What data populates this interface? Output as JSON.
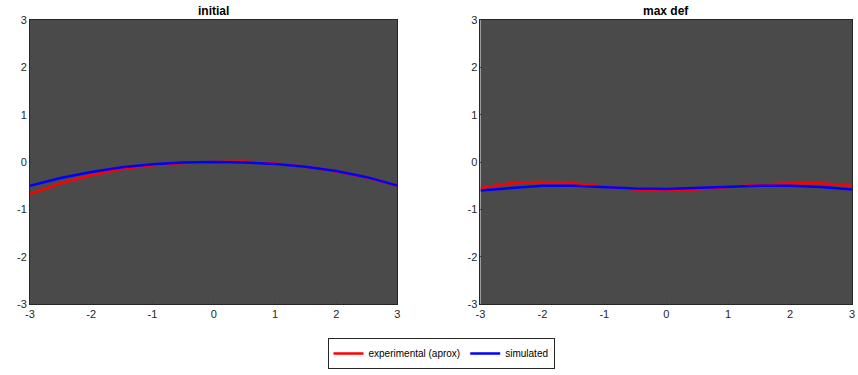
{
  "chart_data": [
    {
      "type": "line",
      "title": "initial",
      "x": [
        -3,
        -2.5,
        -2,
        -1.5,
        -1,
        -0.5,
        0,
        0.5,
        1,
        1.5,
        2,
        2.5,
        3
      ],
      "series": [
        {
          "name": "experimental (aprox)",
          "color": "#ff0000",
          "values": [
            -0.68,
            -0.45,
            -0.28,
            -0.15,
            -0.07,
            -0.02,
            0.0,
            0.01,
            -0.03,
            -0.1,
            -0.2,
            -0.33,
            -0.5
          ]
        },
        {
          "name": "simulated",
          "color": "#0000ff",
          "values": [
            -0.5,
            -0.34,
            -0.21,
            -0.11,
            -0.05,
            -0.01,
            0.0,
            -0.01,
            -0.04,
            -0.1,
            -0.19,
            -0.32,
            -0.5
          ]
        }
      ],
      "xlim": [
        -3,
        3
      ],
      "ylim": [
        -3,
        3
      ],
      "xticks": [
        -3,
        -2,
        -1,
        0,
        1,
        2,
        3
      ],
      "yticks": [
        -3,
        -2,
        -1,
        0,
        1,
        2,
        3
      ],
      "grid": false,
      "legend": "bottom"
    },
    {
      "type": "line",
      "title": "max def",
      "x": [
        -3,
        -2.5,
        -2,
        -1.5,
        -1,
        -0.5,
        0,
        0.5,
        1,
        1.5,
        2,
        2.5,
        3
      ],
      "series": [
        {
          "name": "experimental (aprox)",
          "color": "#ff0000",
          "values": [
            -0.55,
            -0.45,
            -0.42,
            -0.45,
            -0.52,
            -0.58,
            -0.6,
            -0.58,
            -0.53,
            -0.48,
            -0.45,
            -0.45,
            -0.5
          ]
        },
        {
          "name": "simulated",
          "color": "#0000ff",
          "values": [
            -0.6,
            -0.55,
            -0.5,
            -0.5,
            -0.53,
            -0.56,
            -0.57,
            -0.55,
            -0.52,
            -0.5,
            -0.5,
            -0.53,
            -0.58
          ]
        }
      ],
      "xlim": [
        -3,
        3
      ],
      "ylim": [
        -3,
        3
      ],
      "xticks": [
        -3,
        -2,
        -1,
        0,
        1,
        2,
        3
      ],
      "yticks": [
        -3,
        -2,
        -1,
        0,
        1,
        2,
        3
      ],
      "grid": false,
      "legend": "bottom"
    }
  ]
}
